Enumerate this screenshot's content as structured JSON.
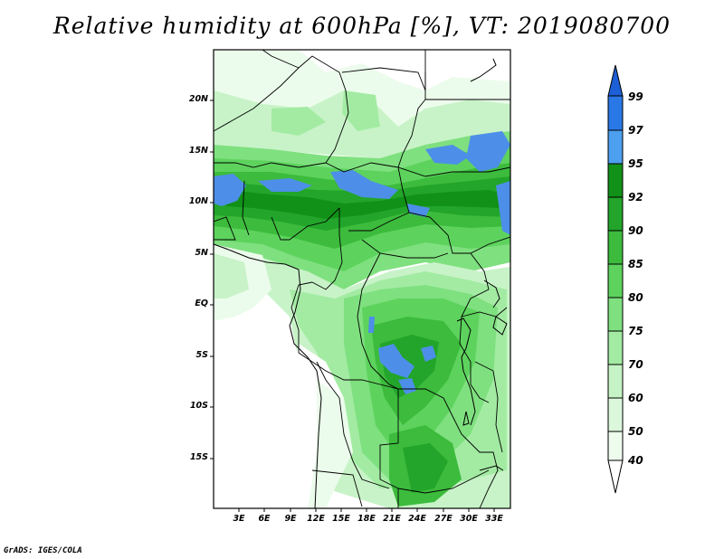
{
  "title": "Relative humidity at 600hPa [%], VT: 2019080700",
  "credit": "GrADS: IGES/COLA",
  "map": {
    "lat_labels": [
      "20N",
      "15N",
      "10N",
      "5N",
      "EQ",
      "5S",
      "10S",
      "15S"
    ],
    "lon_labels": [
      "3E",
      "6E",
      "9E",
      "12E",
      "15E",
      "18E",
      "21E",
      "24E",
      "27E",
      "30E",
      "33E"
    ]
  },
  "colorbar": {
    "levels": [
      "99",
      "97",
      "95",
      "92",
      "90",
      "85",
      "80",
      "75",
      "70",
      "60",
      "50",
      "40"
    ],
    "colors": [
      "#1c5fd6",
      "#2a78e6",
      "#4da0f0",
      "#119117",
      "#22a52a",
      "#3cbb3c",
      "#5dd35d",
      "#7fe07f",
      "#a3eba3",
      "#c6f3c6",
      "#e6fbe6",
      "#ffffff"
    ]
  },
  "fill_colors": {
    "very_light": "#ecfcec",
    "light": "#c8f3c8",
    "mid_light": "#a3eba3",
    "mid": "#7fe07f",
    "mid_dark": "#5dd35d",
    "dark": "#3cbb3c",
    "darker": "#22a52a",
    "darkest": "#119117",
    "blue": "#4d8fe8"
  }
}
